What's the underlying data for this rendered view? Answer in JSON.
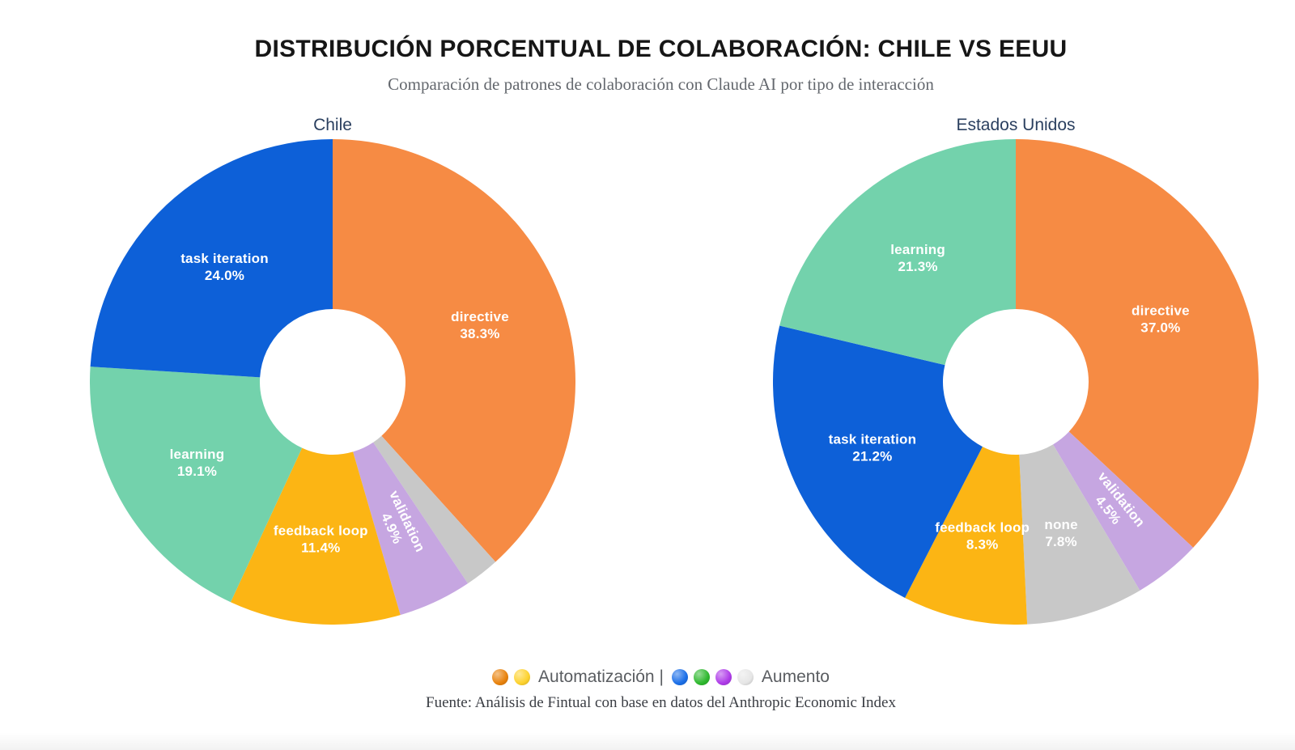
{
  "page": {
    "title": "DISTRIBUCIÓN PORCENTUAL DE COLABORACIÓN: CHILE VS EEUU",
    "subtitle": "Comparación de patrones de colaboración con Claude AI por tipo de interacción",
    "source_note": "Fuente: Análisis de Fintual con base en datos del Anthropic Economic Index"
  },
  "colors": {
    "directive": "#F68B44",
    "task_iteration": "#0D60D8",
    "learning": "#73D2AC",
    "feedback_loop": "#FCB514",
    "validation": "#C6A6E1",
    "none": "#C8C8C8",
    "chart_title": "#2a3f5f",
    "slice_label_text": "#ffffff"
  },
  "chart_data": [
    {
      "type": "pie",
      "title": "Chile",
      "hole_ratio": 0.3,
      "direction": "clockwise",
      "start_angle_deg": 0,
      "labels_inside": true,
      "slices": [
        {
          "label": "directive",
          "value": 38.3,
          "color": "#F68B44",
          "show_label": true
        },
        {
          "label": "none",
          "value": 2.3,
          "color": "#C8C8C8",
          "show_label": false
        },
        {
          "label": "validation",
          "value": 4.9,
          "color": "#C6A6E1",
          "show_label": true
        },
        {
          "label": "feedback loop",
          "value": 11.4,
          "color": "#FCB514",
          "show_label": true
        },
        {
          "label": "learning",
          "value": 19.1,
          "color": "#73D2AC",
          "show_label": true
        },
        {
          "label": "task iteration",
          "value": 24.0,
          "color": "#0D60D8",
          "show_label": true
        }
      ]
    },
    {
      "type": "pie",
      "title": "Estados Unidos",
      "hole_ratio": 0.3,
      "direction": "clockwise",
      "start_angle_deg": 0,
      "labels_inside": true,
      "slices": [
        {
          "label": "directive",
          "value": 37.0,
          "color": "#F68B44",
          "show_label": true
        },
        {
          "label": "validation",
          "value": 4.5,
          "color": "#C6A6E1",
          "show_label": true
        },
        {
          "label": "none",
          "value": 7.8,
          "color": "#C8C8C8",
          "show_label": true
        },
        {
          "label": "feedback loop",
          "value": 8.3,
          "color": "#FCB514",
          "show_label": true
        },
        {
          "label": "task iteration",
          "value": 21.2,
          "color": "#0D60D8",
          "show_label": true
        },
        {
          "label": "learning",
          "value": 21.3,
          "color": "#73D2AC",
          "show_label": true
        }
      ]
    }
  ],
  "legend": {
    "automation_label": "Automatización |",
    "augmentation_label": "Aumento",
    "automation_dots": [
      {
        "name": "orange-circle-icon",
        "color": "#E8820D"
      },
      {
        "name": "yellow-circle-icon",
        "color": "#FDD22E"
      }
    ],
    "augmentation_dots": [
      {
        "name": "blue-circle-icon",
        "color": "#1B6FE8"
      },
      {
        "name": "green-circle-icon",
        "color": "#2EB82E"
      },
      {
        "name": "purple-circle-icon",
        "color": "#AE3BE8"
      },
      {
        "name": "white-circle-icon",
        "color": "#E6E6E6"
      }
    ]
  }
}
